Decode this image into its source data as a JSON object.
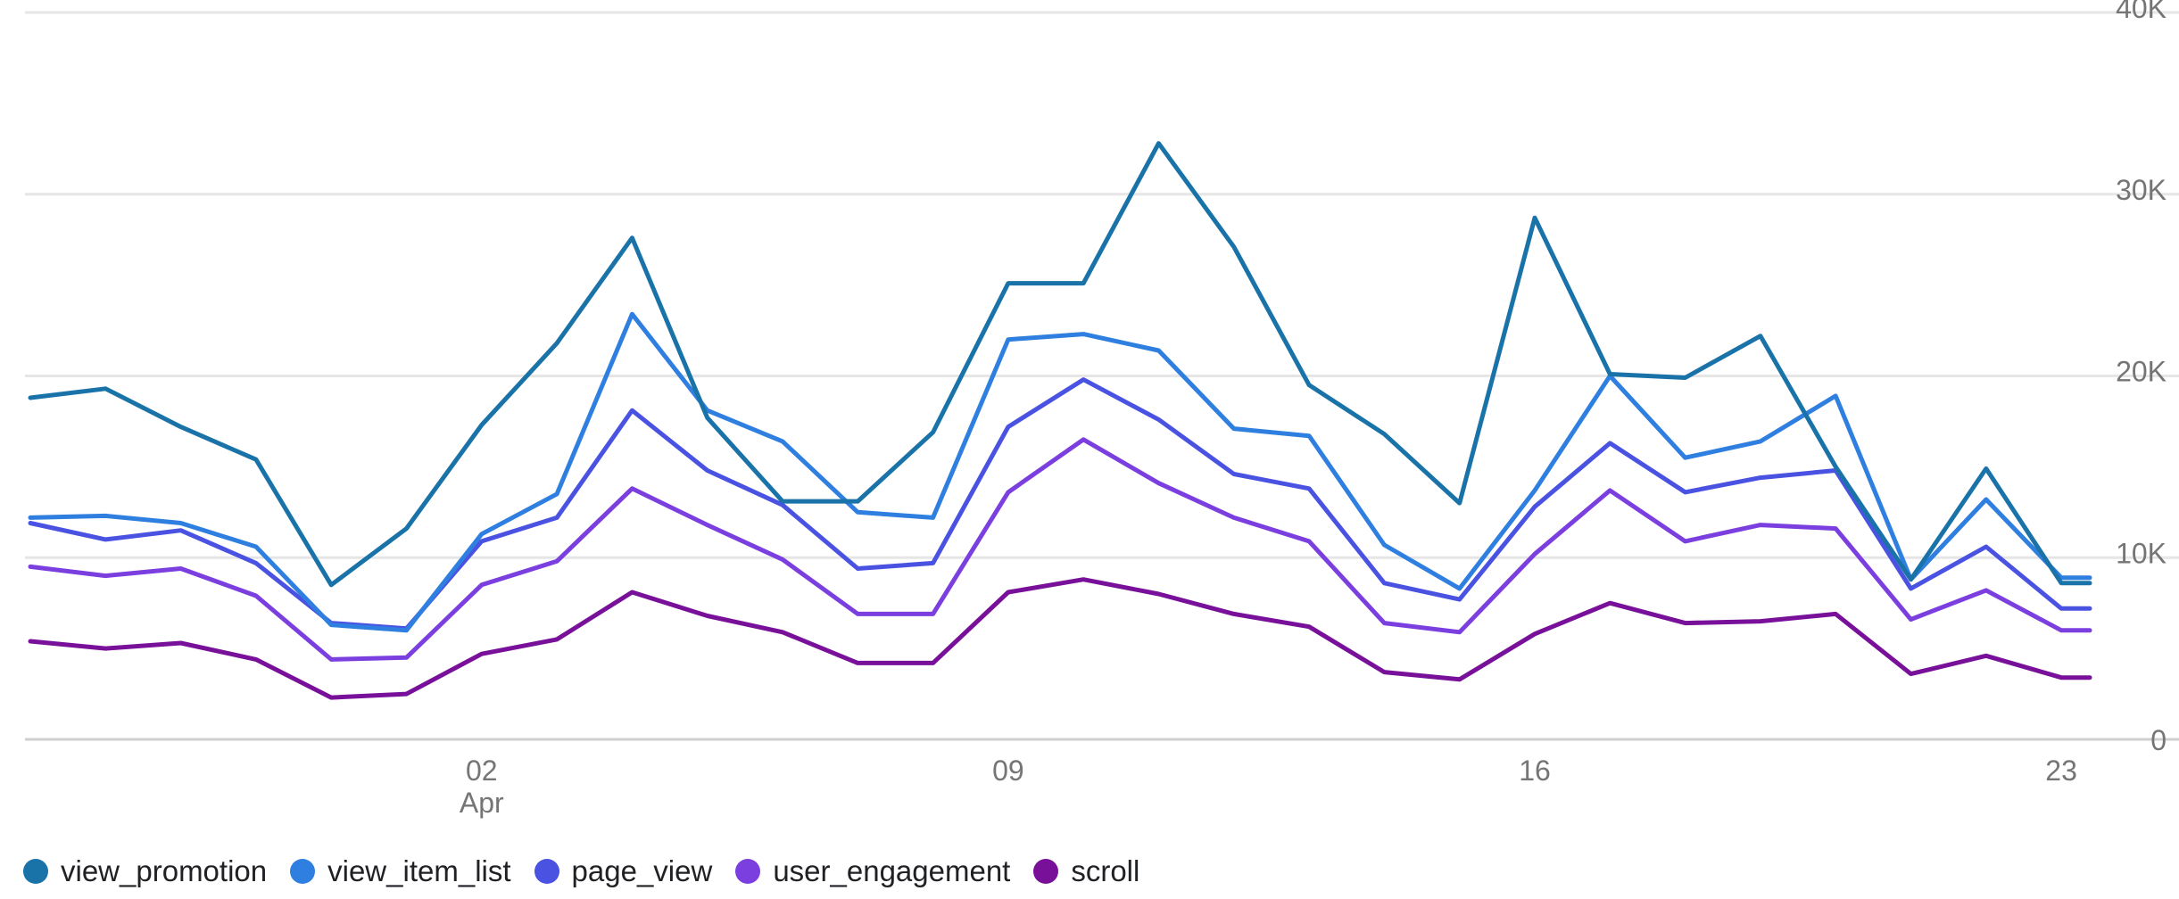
{
  "chart_data": {
    "type": "line",
    "title": "",
    "xlabel": "",
    "ylabel": "",
    "x": [
      "2024-03-27",
      "2024-03-28",
      "2024-03-29",
      "2024-03-30",
      "2024-03-31",
      "2024-04-01",
      "2024-04-02",
      "2024-04-03",
      "2024-04-04",
      "2024-04-05",
      "2024-04-06",
      "2024-04-07",
      "2024-04-08",
      "2024-04-09",
      "2024-04-10",
      "2024-04-11",
      "2024-04-12",
      "2024-04-13",
      "2024-04-14",
      "2024-04-15",
      "2024-04-16",
      "2024-04-17",
      "2024-04-18",
      "2024-04-19",
      "2024-04-20",
      "2024-04-21",
      "2024-04-22",
      "2024-04-23",
      "2024-04-24"
    ],
    "ylim": [
      0,
      40000
    ],
    "y_ticks": [
      0,
      10000,
      20000,
      30000,
      40000
    ],
    "y_tick_labels": [
      "0",
      "10K",
      "20K",
      "30K",
      "40K"
    ],
    "x_ticks": [
      {
        "date": "2024-04-02",
        "label": "02",
        "sublabel": "Apr"
      },
      {
        "date": "2024-04-09",
        "label": "09",
        "sublabel": ""
      },
      {
        "date": "2024-04-16",
        "label": "16",
        "sublabel": ""
      },
      {
        "date": "2024-04-23",
        "label": "23",
        "sublabel": ""
      }
    ],
    "grid": true,
    "legend_position": "bottom-left",
    "series": [
      {
        "name": "view_promotion",
        "color": "#1a73a8",
        "values": [
          18800,
          19300,
          17200,
          15400,
          8500,
          11600,
          17300,
          21800,
          27600,
          17700,
          13100,
          13100,
          16900,
          25100,
          25100,
          32800,
          27100,
          19500,
          16800,
          13000,
          28700,
          20100,
          19900,
          22200,
          15000,
          8800,
          14900,
          8600,
          null
        ]
      },
      {
        "name": "view_item_list",
        "color": "#2f7fe0",
        "values": [
          12200,
          12300,
          11900,
          10600,
          6300,
          6000,
          11300,
          13500,
          23400,
          18100,
          16400,
          12500,
          12200,
          22000,
          22300,
          21400,
          17100,
          16700,
          10700,
          8300,
          13700,
          20000,
          15500,
          16400,
          18900,
          8800,
          13200,
          8900,
          null
        ]
      },
      {
        "name": "page_view",
        "color": "#4a52e2",
        "values": [
          11900,
          11000,
          11500,
          9700,
          6400,
          6100,
          10900,
          12200,
          18100,
          14800,
          12900,
          9400,
          9700,
          17200,
          19800,
          17600,
          14600,
          13800,
          8600,
          7700,
          12800,
          16300,
          13600,
          14400,
          14800,
          8300,
          10600,
          7200,
          null
        ]
      },
      {
        "name": "user_engagement",
        "color": "#7b3fe0",
        "values": [
          9500,
          9000,
          9400,
          7900,
          4400,
          4500,
          8500,
          9800,
          13800,
          11800,
          9900,
          6900,
          6900,
          13600,
          16500,
          14100,
          12200,
          10900,
          6400,
          5900,
          10200,
          13700,
          10900,
          11800,
          11600,
          6600,
          8200,
          6000,
          null
        ]
      },
      {
        "name": "scroll",
        "color": "#78109a",
        "values": [
          5400,
          5000,
          5300,
          4400,
          2300,
          2500,
          4700,
          5500,
          8100,
          6800,
          5900,
          4200,
          4200,
          8100,
          8800,
          8000,
          6900,
          6200,
          3700,
          3300,
          5800,
          7500,
          6400,
          6500,
          6900,
          3600,
          4600,
          3400,
          null
        ]
      }
    ]
  }
}
